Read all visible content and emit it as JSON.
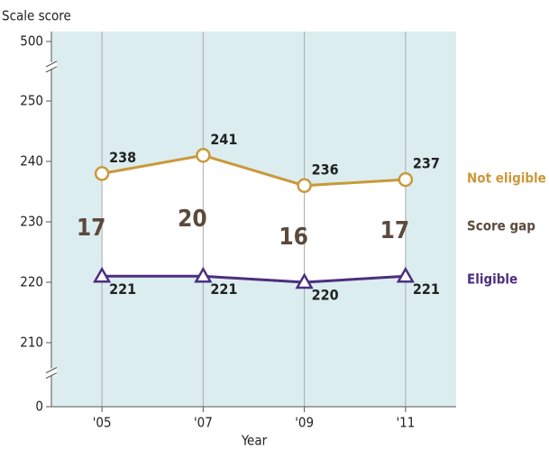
{
  "chart_data": {
    "type": "line",
    "y_axis_label": "Scale score",
    "x_axis_label": "Year",
    "categories": [
      "'05",
      "'07",
      "'09",
      "'11"
    ],
    "series": [
      {
        "name": "Not eligible",
        "color": "#c9993a",
        "marker": "circle",
        "values": [
          238,
          241,
          236,
          237
        ]
      },
      {
        "name": "Eligible",
        "color": "#4b2f7f",
        "marker": "triangle",
        "values": [
          221,
          221,
          220,
          221
        ]
      }
    ],
    "gap_label": "Score gap",
    "gap_color": "#5b4a3c",
    "gap_values": [
      17,
      20,
      16,
      17
    ],
    "ylim": [
      0,
      500
    ],
    "yticks": [
      0,
      210,
      220,
      230,
      240,
      250,
      500
    ],
    "axis_break": true,
    "grid": true,
    "background": "#dcedef"
  }
}
